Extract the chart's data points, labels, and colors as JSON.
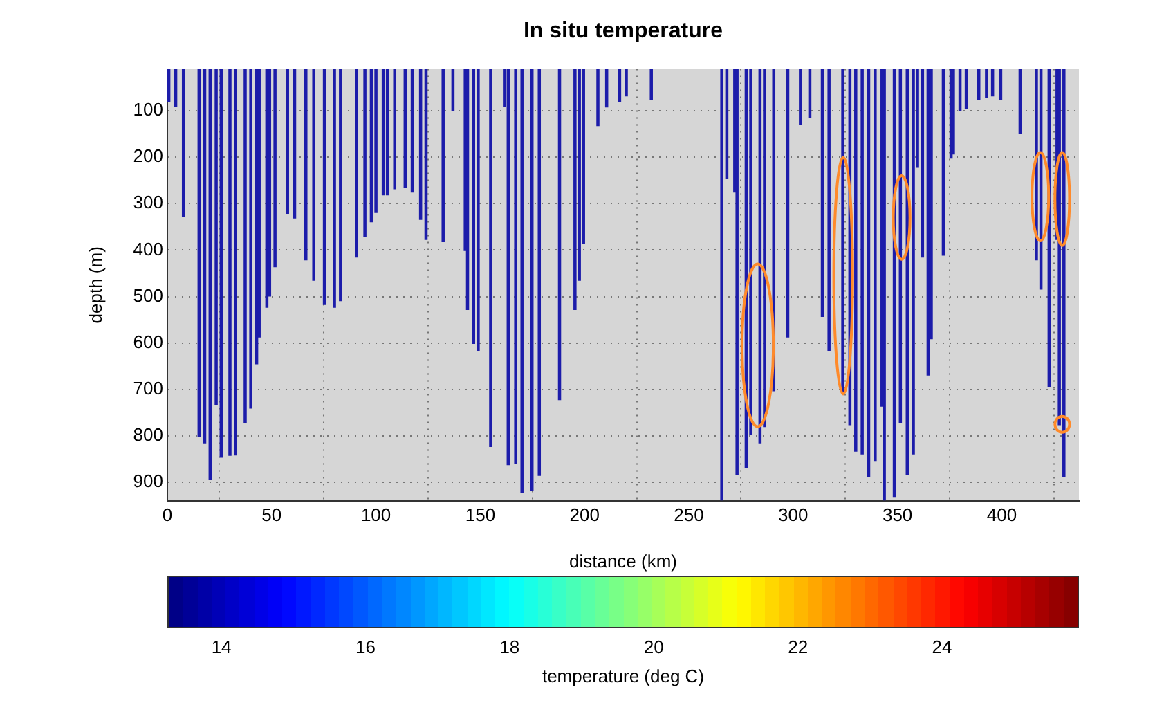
{
  "chart_data": {
    "type": "bar",
    "title": "In situ temperature",
    "xlabel": "distance (km)",
    "ylabel": "depth (m)",
    "clabel": "temperature (deg C)",
    "x": [
      0.7,
      4,
      7.7,
      15.2,
      17.9,
      20.5,
      23.4,
      25.8,
      30,
      32.6,
      37.3,
      40,
      42.8,
      44,
      47.7,
      49,
      51.6,
      57.6,
      61,
      66.4,
      70.2,
      75.3,
      80.1,
      83,
      90.7,
      94.7,
      97.8,
      100,
      103.5,
      105.5,
      109,
      114,
      117.4,
      121.4,
      124,
      132.2,
      136.9,
      142.8,
      143.9,
      146.8,
      149,
      155,
      161.6,
      163.4,
      167,
      170,
      174.8,
      178.3,
      188,
      195.4,
      197.5,
      199.5,
      206.4,
      210.6,
      216.8,
      220,
      232,
      265.8,
      268.2,
      272,
      273.1,
      277.5,
      279.7,
      284.1,
      286.3,
      290.7,
      297.4,
      303.5,
      308,
      314,
      317.2,
      323.8,
      327.2,
      330,
      333.1,
      336.2,
      339.3,
      342.6,
      343.7,
      348.5,
      351.4,
      354.7,
      357.6,
      359.6,
      362,
      364.7,
      366.2,
      372,
      375.7,
      376.8,
      380,
      383,
      389,
      392.7,
      395.6,
      399.5,
      408.8,
      416.6,
      418.8,
      422.7,
      426.5,
      427.6,
      429.8
    ],
    "values": [
      80,
      91,
      327,
      801,
      815,
      894,
      733,
      846,
      842,
      841,
      772,
      740,
      645,
      587,
      523,
      499,
      436,
      322,
      331,
      421,
      465,
      517,
      523,
      509,
      415,
      371,
      339,
      319,
      281,
      281,
      268,
      265,
      275,
      334,
      377,
      382,
      100,
      401,
      528,
      601,
      616,
      823,
      90,
      862,
      859,
      922,
      918,
      885,
      722,
      528,
      465,
      386,
      132,
      92,
      80,
      68,
      75,
      938,
      246,
      275,
      883,
      869,
      796,
      815,
      780,
      703,
      587,
      129,
      115,
      543,
      616,
      708,
      776,
      833,
      839,
      888,
      853,
      736,
      938,
      932,
      772,
      883,
      839,
      222,
      415,
      669,
      591,
      411,
      202,
      193,
      100,
      95,
      76,
      71,
      68,
      76,
      149,
      421,
      484,
      694,
      377,
      776,
      888
    ],
    "color": "#1c1caa",
    "xlim": [
      0,
      437
    ],
    "xticks": [
      0,
      50,
      100,
      150,
      200,
      250,
      300,
      350,
      400
    ],
    "ylim": [
      940,
      10
    ],
    "yticks": [
      100,
      200,
      300,
      400,
      500,
      600,
      700,
      800,
      900
    ],
    "clim": [
      13.25,
      25.9
    ],
    "cticks": [
      14,
      16,
      18,
      20,
      22,
      24
    ],
    "grid": true,
    "legend": false
  }
}
